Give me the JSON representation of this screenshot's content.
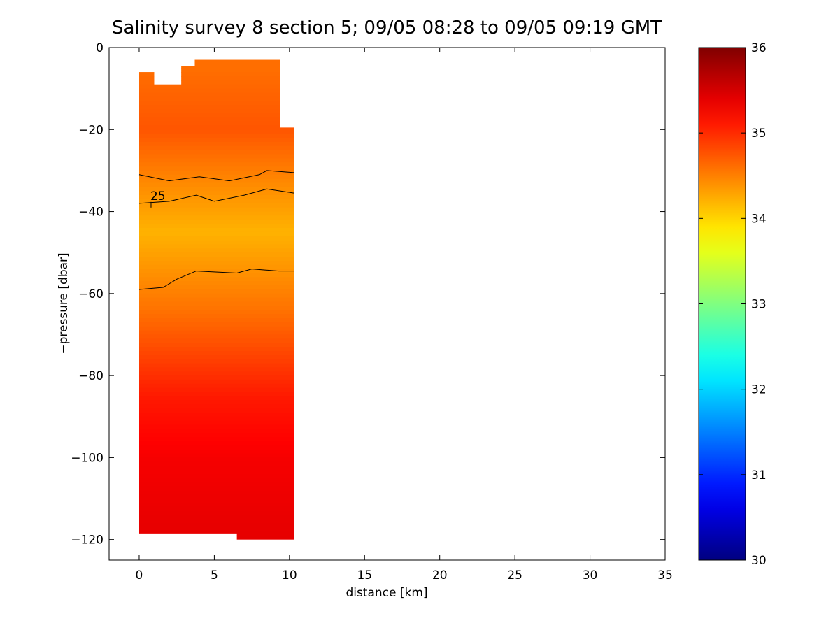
{
  "chart_data": {
    "type": "heatmap",
    "title": "Salinity survey 8 section 5; 09/05 08:28 to 09/05 09:19 GMT",
    "xlabel": "distance [km]",
    "ylabel": "−pressure [dbar]",
    "xlim": [
      -2,
      35
    ],
    "ylim": [
      -125,
      0
    ],
    "xticks": [
      0,
      5,
      10,
      15,
      20,
      25,
      30,
      35
    ],
    "yticks": [
      0,
      -20,
      -40,
      -60,
      -80,
      -100,
      -120
    ],
    "ytick_labels": [
      "0",
      "−20",
      "−40",
      "−60",
      "−80",
      "−100",
      "−120"
    ],
    "colorbar": {
      "range": [
        30,
        36
      ],
      "ticks": [
        30,
        31,
        32,
        33,
        34,
        35,
        36
      ],
      "colormap": "jet"
    },
    "data_region": {
      "x_range": [
        0,
        10.3
      ],
      "top_outline": [
        [
          0,
          -6
        ],
        [
          1.0,
          -6
        ],
        [
          1.0,
          -9
        ],
        [
          2.8,
          -9
        ],
        [
          2.8,
          -4.5
        ],
        [
          3.7,
          -4.5
        ],
        [
          3.7,
          -3
        ],
        [
          9.4,
          -3
        ],
        [
          9.4,
          -19.5
        ],
        [
          10.3,
          -19.5
        ]
      ],
      "bottom_outline": [
        [
          0,
          -118.5
        ],
        [
          6.5,
          -118.5
        ],
        [
          6.5,
          -120
        ],
        [
          10.3,
          -120
        ]
      ]
    },
    "salinity_profile": [
      {
        "depth": -5,
        "value": 34.6
      },
      {
        "depth": -20,
        "value": 34.75
      },
      {
        "depth": -35,
        "value": 34.4
      },
      {
        "depth": -45,
        "value": 34.2
      },
      {
        "depth": -55,
        "value": 34.4
      },
      {
        "depth": -65,
        "value": 34.6
      },
      {
        "depth": -75,
        "value": 34.85
      },
      {
        "depth": -85,
        "value": 35.1
      },
      {
        "depth": -100,
        "value": 35.3
      },
      {
        "depth": -120,
        "value": 35.4
      }
    ],
    "contours": [
      {
        "level": "",
        "points": [
          [
            0,
            -31
          ],
          [
            2,
            -32.5
          ],
          [
            4,
            -31.5
          ],
          [
            6,
            -32.5
          ],
          [
            8,
            -31
          ],
          [
            8.5,
            -30
          ],
          [
            10.3,
            -30.5
          ]
        ]
      },
      {
        "level": "25",
        "points": [
          [
            0,
            -38
          ],
          [
            2,
            -37.5
          ],
          [
            3.8,
            -36
          ],
          [
            5,
            -37.5
          ],
          [
            7,
            -36
          ],
          [
            8.5,
            -34.5
          ],
          [
            10.3,
            -35.5
          ]
        ]
      },
      {
        "level": "",
        "points": [
          [
            0,
            -59
          ],
          [
            1.6,
            -58.5
          ],
          [
            2.5,
            -56.5
          ],
          [
            3.8,
            -54.5
          ],
          [
            6.5,
            -55
          ],
          [
            7.5,
            -54
          ],
          [
            9.3,
            -54.5
          ],
          [
            10.3,
            -54.5
          ]
        ]
      }
    ]
  }
}
